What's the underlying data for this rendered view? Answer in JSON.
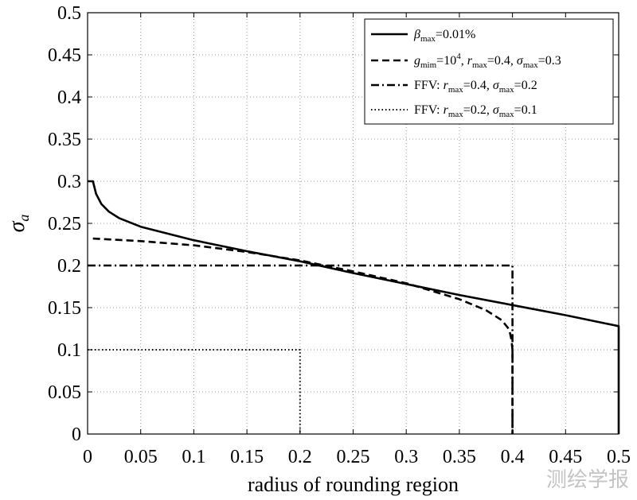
{
  "chart_data": {
    "type": "line",
    "xlabel": "radius of rounding region",
    "ylabel": "σa",
    "xlim": [
      0,
      0.5
    ],
    "ylim": [
      0,
      0.5
    ],
    "xticks": [
      "0",
      "0.05",
      "0.1",
      "0.15",
      "0.2",
      "0.25",
      "0.3",
      "0.35",
      "0.4",
      "0.45",
      "0.5"
    ],
    "yticks": [
      "0",
      "0.05",
      "0.1",
      "0.15",
      "0.2",
      "0.25",
      "0.3",
      "0.35",
      "0.4",
      "0.45",
      "0.5"
    ],
    "grid": true,
    "legend_position": "top-right",
    "series": [
      {
        "name": "βmax=0.01%",
        "style": "solid",
        "points": [
          [
            0,
            0.3
          ],
          [
            0.005,
            0.3
          ],
          [
            0.008,
            0.285
          ],
          [
            0.013,
            0.273
          ],
          [
            0.02,
            0.264
          ],
          [
            0.03,
            0.256
          ],
          [
            0.05,
            0.246
          ],
          [
            0.1,
            0.23
          ],
          [
            0.15,
            0.217
          ],
          [
            0.2,
            0.205
          ],
          [
            0.25,
            0.191
          ],
          [
            0.3,
            0.178
          ],
          [
            0.35,
            0.165
          ],
          [
            0.4,
            0.153
          ],
          [
            0.45,
            0.141
          ],
          [
            0.5,
            0.128
          ],
          [
            0.5,
            0.0
          ]
        ]
      },
      {
        "name": "gmim=10^4, rmax=0.4, σmax=0.3",
        "style": "dashed",
        "points": [
          [
            0.005,
            0.232
          ],
          [
            0.05,
            0.229
          ],
          [
            0.1,
            0.224
          ],
          [
            0.15,
            0.216
          ],
          [
            0.2,
            0.206
          ],
          [
            0.25,
            0.193
          ],
          [
            0.3,
            0.179
          ],
          [
            0.35,
            0.16
          ],
          [
            0.375,
            0.147
          ],
          [
            0.39,
            0.135
          ],
          [
            0.397,
            0.124
          ],
          [
            0.399,
            0.112
          ],
          [
            0.4,
            0.1
          ],
          [
            0.4,
            0.0
          ]
        ]
      },
      {
        "name": "FFV: rmax=0.4, σmax=0.2",
        "style": "dashdot",
        "points": [
          [
            0,
            0.2
          ],
          [
            0.4,
            0.2
          ],
          [
            0.4,
            0.0
          ]
        ]
      },
      {
        "name": "FFV: rmax=0.2, σmax=0.1",
        "style": "dotted",
        "points": [
          [
            0,
            0.1
          ],
          [
            0.2,
            0.1
          ],
          [
            0.2,
            0.0
          ]
        ]
      }
    ],
    "legend": {
      "entries": [
        {
          "style": "solid",
          "parts": [
            [
              "β",
              "it"
            ],
            [
              "max",
              "sub"
            ],
            [
              "=0.01%",
              ""
            ]
          ]
        },
        {
          "style": "dashed",
          "parts": [
            [
              "g",
              "it"
            ],
            [
              "mim",
              "sub"
            ],
            [
              "=10",
              ""
            ],
            [
              "4",
              "sup"
            ],
            [
              ", ",
              ""
            ],
            [
              "r",
              "it"
            ],
            [
              "max",
              "sub"
            ],
            [
              "=0.4, ",
              ""
            ],
            [
              "σ",
              "it"
            ],
            [
              "max",
              "sub"
            ],
            [
              "=0.3",
              ""
            ]
          ]
        },
        {
          "style": "dashdot",
          "parts": [
            [
              "FFV: ",
              ""
            ],
            [
              "r",
              "it"
            ],
            [
              "max",
              "sub"
            ],
            [
              "=0.4, ",
              ""
            ],
            [
              "σ",
              "it"
            ],
            [
              "max",
              "sub"
            ],
            [
              "=0.2",
              ""
            ]
          ]
        },
        {
          "style": "dotted",
          "parts": [
            [
              "FFV: ",
              ""
            ],
            [
              "r",
              "it"
            ],
            [
              "max",
              "sub"
            ],
            [
              "=0.2, ",
              ""
            ],
            [
              "σ",
              "it"
            ],
            [
              "max",
              "sub"
            ],
            [
              "=0.1",
              ""
            ]
          ]
        }
      ]
    }
  },
  "watermark": "测绘学报"
}
